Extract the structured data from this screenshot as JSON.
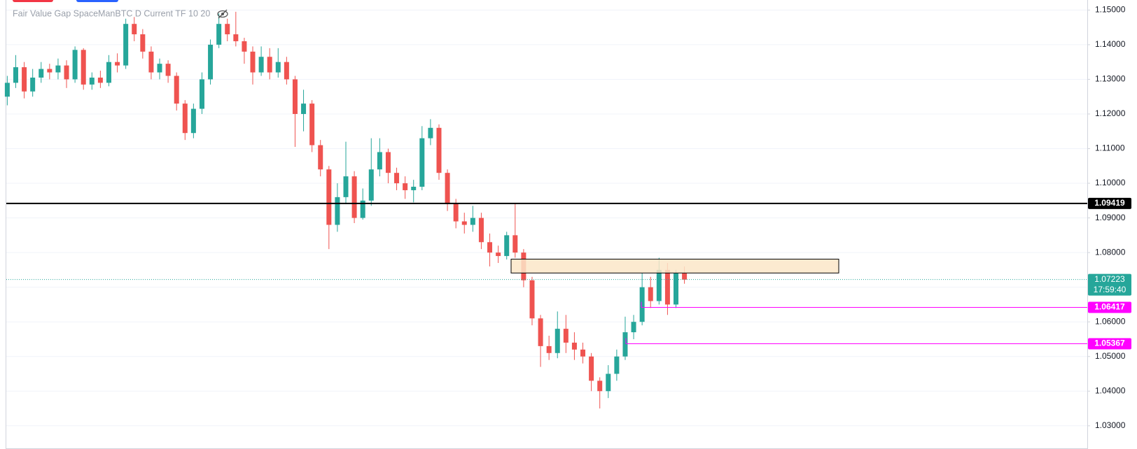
{
  "chart_data": {
    "type": "candlestick",
    "title": "Fair Value Gap SpaceManBTC D Current TF 10 20",
    "up_color": "#26a69a",
    "down_color": "#ef5350",
    "grid": true,
    "ylim": [
      1.0233,
      1.1529
    ],
    "yticks": [
      {
        "value": 1.03,
        "label": "1.03000"
      },
      {
        "value": 1.04,
        "label": "1.04000"
      },
      {
        "value": 1.05,
        "label": "1.05000"
      },
      {
        "value": 1.06,
        "label": "1.06000"
      },
      {
        "value": 1.07,
        "label": "1.07000"
      },
      {
        "value": 1.08,
        "label": "1.08000"
      },
      {
        "value": 1.09,
        "label": "1.09000"
      },
      {
        "value": 1.1,
        "label": "1.10000"
      },
      {
        "value": 1.11,
        "label": "1.11000"
      },
      {
        "value": 1.12,
        "label": "1.12000"
      },
      {
        "value": 1.13,
        "label": "1.13000"
      },
      {
        "value": 1.14,
        "label": "1.14000"
      },
      {
        "value": 1.15,
        "label": "1.15000"
      }
    ],
    "open": [
      1.125,
      1.129,
      1.1335,
      1.1265,
      1.1305,
      1.133,
      1.132,
      1.134,
      1.13,
      1.1385,
      1.1285,
      1.1305,
      1.129,
      1.135,
      1.134,
      1.146,
      1.143,
      1.138,
      1.132,
      1.1345,
      1.131,
      1.123,
      1.1145,
      1.1215,
      1.13,
      1.14,
      1.146,
      1.143,
      1.141,
      1.138,
      1.132,
      1.1365,
      1.132,
      1.135,
      1.13,
      1.12,
      1.123,
      1.111,
      1.104,
      1.088,
      1.096,
      1.102,
      1.09,
      1.095,
      1.104,
      1.109,
      1.103,
      1.1,
      1.098,
      1.099,
      1.113,
      1.116,
      1.103,
      1.094,
      1.089,
      1.088,
      1.09,
      1.083,
      1.08,
      1.079,
      1.085,
      1.08,
      1.072,
      1.061,
      1.053,
      1.051,
      1.058,
      1.054,
      1.052,
      1.05,
      1.043,
      1.04,
      1.045,
      1.05,
      1.057,
      1.06,
      1.07,
      1.066,
      1.075,
      1.065,
      1.074
    ],
    "high": [
      1.131,
      1.137,
      1.135,
      1.133,
      1.135,
      1.1345,
      1.136,
      1.1355,
      1.1395,
      1.139,
      1.132,
      1.1325,
      1.137,
      1.1375,
      1.1475,
      1.148,
      1.1445,
      1.1395,
      1.136,
      1.1355,
      1.132,
      1.124,
      1.123,
      1.132,
      1.1415,
      1.149,
      1.1475,
      1.1495,
      1.142,
      1.1395,
      1.1395,
      1.139,
      1.139,
      1.1365,
      1.131,
      1.127,
      1.124,
      1.1125,
      1.105,
      1.1,
      1.112,
      1.1035,
      1.0985,
      1.113,
      1.113,
      1.11,
      1.1045,
      1.102,
      1.101,
      1.1165,
      1.1185,
      1.117,
      1.104,
      1.0955,
      1.0915,
      1.0935,
      1.0915,
      1.0855,
      1.082,
      1.086,
      1.094,
      1.081,
      1.073,
      1.062,
      1.056,
      1.063,
      1.062,
      1.057,
      1.054,
      1.051,
      1.044,
      1.0475,
      1.052,
      1.0615,
      1.062,
      1.074,
      1.073,
      1.0785,
      1.077,
      1.075,
      1.076
    ],
    "low": [
      1.1225,
      1.1275,
      1.1245,
      1.125,
      1.129,
      1.13,
      1.13,
      1.1275,
      1.129,
      1.127,
      1.127,
      1.1275,
      1.128,
      1.132,
      1.133,
      1.141,
      1.136,
      1.13,
      1.13,
      1.129,
      1.121,
      1.1125,
      1.113,
      1.12,
      1.1285,
      1.139,
      1.141,
      1.1395,
      1.1345,
      1.1285,
      1.131,
      1.13,
      1.1305,
      1.1285,
      1.1105,
      1.115,
      1.109,
      1.102,
      1.081,
      1.086,
      1.094,
      1.0885,
      1.0895,
      1.0935,
      1.102,
      1.1,
      1.098,
      1.0955,
      1.0945,
      1.098,
      1.111,
      1.101,
      1.092,
      1.087,
      1.0855,
      1.086,
      1.081,
      1.076,
      1.077,
      1.078,
      1.0785,
      1.07,
      1.059,
      1.047,
      1.049,
      1.0495,
      1.051,
      1.049,
      1.048,
      1.04,
      1.035,
      1.038,
      1.043,
      1.049,
      1.055,
      1.059,
      1.064,
      1.065,
      1.062,
      1.064,
      1.071
    ],
    "close": [
      1.129,
      1.1335,
      1.1265,
      1.1305,
      1.133,
      1.132,
      1.134,
      1.13,
      1.1385,
      1.1285,
      1.1305,
      1.129,
      1.135,
      1.134,
      1.146,
      1.143,
      1.138,
      1.132,
      1.1345,
      1.131,
      1.123,
      1.1145,
      1.1215,
      1.13,
      1.14,
      1.146,
      1.143,
      1.141,
      1.138,
      1.132,
      1.1365,
      1.132,
      1.135,
      1.13,
      1.12,
      1.123,
      1.111,
      1.104,
      1.088,
      1.096,
      1.102,
      1.09,
      1.095,
      1.104,
      1.109,
      1.103,
      1.1,
      1.098,
      1.099,
      1.113,
      1.116,
      1.103,
      1.094,
      1.089,
      1.088,
      1.09,
      1.083,
      1.08,
      1.079,
      1.085,
      1.08,
      1.072,
      1.061,
      1.053,
      1.051,
      1.058,
      1.054,
      1.052,
      1.05,
      1.043,
      1.04,
      1.045,
      1.05,
      1.057,
      1.06,
      1.07,
      1.066,
      1.075,
      1.065,
      1.074,
      1.0722
    ],
    "zone": {
      "top": 1.0781,
      "bottom": 1.0741,
      "fill": "#fbe6c8",
      "stroke": "#000000"
    },
    "levels": [
      {
        "value": 1.09419,
        "color": "#000000"
      },
      {
        "value": 1.06417,
        "color": "#ff00ff"
      },
      {
        "value": 1.05367,
        "color": "#ff00ff"
      }
    ],
    "current_price": {
      "value": 1.07223,
      "countdown": "17:59:40",
      "color": "#26a69a"
    }
  }
}
